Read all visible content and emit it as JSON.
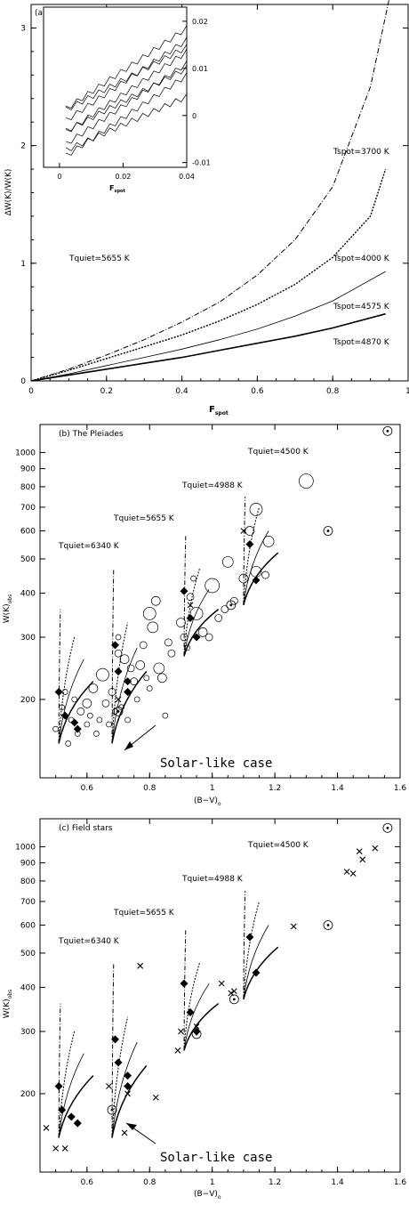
{
  "chart_data": [
    {
      "type": "line",
      "panel_label": "(a)",
      "xlabel": "F",
      "xlabel_sub": "spot",
      "ylabel": "ΔW(K)/W(K)",
      "xlim": [
        0,
        1
      ],
      "ylim": [
        0,
        3.2
      ],
      "xticks": [
        "0",
        "0.2",
        "0.4",
        "0.6",
        "0.8",
        "1"
      ],
      "yticks": [
        "0",
        "1",
        "2",
        "3"
      ],
      "annotations": [
        "Tquiet=5655 K"
      ],
      "series": [
        {
          "name": "Tspot=3700 K",
          "x": [
            0,
            0.1,
            0.2,
            0.3,
            0.4,
            0.5,
            0.6,
            0.7,
            0.8,
            0.9,
            0.95
          ],
          "y": [
            0,
            0.1,
            0.22,
            0.35,
            0.5,
            0.67,
            0.9,
            1.2,
            1.65,
            2.5,
            3.3
          ]
        },
        {
          "name": "Tspot=4000 K",
          "x": [
            0,
            0.1,
            0.2,
            0.3,
            0.4,
            0.5,
            0.6,
            0.7,
            0.8,
            0.9,
            0.94
          ],
          "y": [
            0,
            0.09,
            0.19,
            0.29,
            0.39,
            0.51,
            0.65,
            0.82,
            1.05,
            1.4,
            1.8
          ]
        },
        {
          "name": "Tspot=4575 K",
          "x": [
            0,
            0.1,
            0.2,
            0.3,
            0.4,
            0.5,
            0.6,
            0.7,
            0.8,
            0.94
          ],
          "y": [
            0,
            0.06,
            0.13,
            0.2,
            0.27,
            0.35,
            0.44,
            0.55,
            0.68,
            0.93
          ]
        },
        {
          "name": "Tspot=4870 K",
          "x": [
            0,
            0.1,
            0.2,
            0.3,
            0.4,
            0.5,
            0.6,
            0.7,
            0.8,
            0.94
          ],
          "y": [
            0,
            0.05,
            0.1,
            0.15,
            0.2,
            0.26,
            0.32,
            0.38,
            0.45,
            0.57
          ]
        }
      ],
      "inset": {
        "xlim": [
          -0.005,
          0.04
        ],
        "ylim": [
          -0.011,
          0.023
        ],
        "xticks": [
          "0",
          "0.02",
          "0.04"
        ],
        "yticks": [
          "-0.01",
          "0",
          "0.01",
          "0.02"
        ],
        "xlabel": "F",
        "xlabel_sub": "spot",
        "lines": [
          {
            "y0": 0.0005,
            "slope": 0.45
          },
          {
            "y0": -0.002,
            "slope": 0.45
          },
          {
            "y0": -0.0045,
            "slope": 0.45
          },
          {
            "y0": -0.007,
            "slope": 0.45
          },
          {
            "y0": -0.0095,
            "slope": 0.45
          },
          {
            "y0": 0.0005,
            "slope": 0.35
          },
          {
            "y0": -0.004,
            "slope": 0.35
          },
          {
            "y0": -0.008,
            "slope": 0.3
          }
        ]
      }
    },
    {
      "type": "scatter",
      "panel_label": "(b) The Pleiades",
      "xlabel": "(B−V)",
      "xlabel_sub": "o",
      "ylabel": "W(K)",
      "ylabel_sub": "obs",
      "xlim": [
        0.45,
        1.6
      ],
      "ylim": [
        120,
        1200
      ],
      "yscale": "log",
      "xticks": [
        "0.6",
        "0.8",
        "1",
        "1.2",
        "1.4",
        "1.6"
      ],
      "yticks": [
        "200",
        "300",
        "400",
        "500",
        "600",
        "700",
        "800",
        "900",
        "1000"
      ],
      "tracks": [
        {
          "label": "Tquiet=6340 K",
          "x0": 0.51,
          "y0": 150,
          "top": 360,
          "mid": [
            300,
            260,
            225
          ]
        },
        {
          "label": "Tquiet=5655 K",
          "x0": 0.68,
          "y0": 150,
          "top": 470,
          "mid": [
            330,
            280,
            240
          ]
        },
        {
          "label": "Tquiet=4988 K",
          "x0": 0.91,
          "y0": 265,
          "top": 580,
          "mid": [
            470,
            410,
            360
          ]
        },
        {
          "label": "Tquiet=4500 K",
          "x0": 1.1,
          "y0": 370,
          "top": 750,
          "mid": [
            700,
            600,
            520
          ]
        }
      ],
      "diamonds": [
        [
          0.51,
          210
        ],
        [
          0.53,
          180
        ],
        [
          0.56,
          172
        ],
        [
          0.57,
          165
        ],
        [
          0.69,
          285
        ],
        [
          0.7,
          240
        ],
        [
          0.73,
          225
        ],
        [
          0.73,
          210
        ],
        [
          0.91,
          405
        ],
        [
          0.93,
          340
        ],
        [
          0.95,
          300
        ],
        [
          1.12,
          550
        ],
        [
          1.14,
          435
        ]
      ],
      "circles": [
        [
          0.5,
          165,
          3
        ],
        [
          0.52,
          190,
          3
        ],
        [
          0.53,
          210,
          3
        ],
        [
          0.54,
          150,
          3
        ],
        [
          0.55,
          175,
          3
        ],
        [
          0.56,
          200,
          3
        ],
        [
          0.57,
          160,
          3
        ],
        [
          0.58,
          185,
          4
        ],
        [
          0.6,
          195,
          5
        ],
        [
          0.6,
          170,
          3
        ],
        [
          0.61,
          180,
          3
        ],
        [
          0.62,
          215,
          5
        ],
        [
          0.63,
          160,
          3
        ],
        [
          0.64,
          175,
          3
        ],
        [
          0.65,
          235,
          7
        ],
        [
          0.66,
          195,
          4
        ],
        [
          0.67,
          170,
          3
        ],
        [
          0.68,
          210,
          4
        ],
        [
          0.69,
          185,
          3
        ],
        [
          0.7,
          270,
          4
        ],
        [
          0.7,
          300,
          3
        ],
        [
          0.71,
          190,
          3
        ],
        [
          0.72,
          260,
          5
        ],
        [
          0.73,
          175,
          3
        ],
        [
          0.74,
          245,
          4
        ],
        [
          0.75,
          225,
          4
        ],
        [
          0.76,
          200,
          3
        ],
        [
          0.77,
          250,
          5
        ],
        [
          0.78,
          285,
          4
        ],
        [
          0.79,
          230,
          3
        ],
        [
          0.8,
          215,
          3
        ],
        [
          0.8,
          350,
          7
        ],
        [
          0.81,
          320,
          6
        ],
        [
          0.82,
          380,
          5
        ],
        [
          0.83,
          245,
          6
        ],
        [
          0.84,
          230,
          5
        ],
        [
          0.85,
          180,
          3
        ],
        [
          0.86,
          290,
          4
        ],
        [
          0.87,
          270,
          4
        ],
        [
          0.9,
          330,
          5
        ],
        [
          0.91,
          300,
          4
        ],
        [
          0.92,
          280,
          3
        ],
        [
          0.93,
          390,
          4
        ],
        [
          0.94,
          440,
          3
        ],
        [
          0.95,
          350,
          7
        ],
        [
          0.97,
          310,
          5
        ],
        [
          0.99,
          300,
          4
        ],
        [
          1.0,
          420,
          8
        ],
        [
          1.02,
          340,
          4
        ],
        [
          1.04,
          360,
          4
        ],
        [
          1.05,
          490,
          6
        ],
        [
          1.07,
          380,
          4
        ],
        [
          1.1,
          440,
          5
        ],
        [
          1.12,
          600,
          5
        ],
        [
          1.14,
          460,
          6
        ],
        [
          1.14,
          690,
          7
        ],
        [
          1.17,
          450,
          4
        ],
        [
          1.18,
          560,
          6
        ],
        [
          1.3,
          830,
          8
        ]
      ],
      "dotcircles": [
        [
          1.06,
          370
        ],
        [
          1.37,
          600
        ],
        [
          1.56,
          1150
        ],
        [
          0.7,
          185
        ]
      ],
      "crosses": [
        [
          0.93,
          370
        ],
        [
          1.1,
          600
        ],
        [
          0.7,
          200
        ]
      ],
      "annotations": [
        "Solar-like case"
      ]
    },
    {
      "type": "scatter",
      "panel_label": "(c) Field stars",
      "xlabel": "(B−V)",
      "xlabel_sub": "o",
      "ylabel": "W(K)",
      "ylabel_sub": "obs",
      "xlim": [
        0.45,
        1.6
      ],
      "ylim": [
        120,
        1200
      ],
      "yscale": "log",
      "xticks": [
        "0.6",
        "0.8",
        "1",
        "1.2",
        "1.4",
        "1.6"
      ],
      "yticks": [
        "200",
        "300",
        "400",
        "500",
        "600",
        "700",
        "800",
        "900",
        "1000"
      ],
      "tracks": [
        {
          "label": "Tquiet=6340 K",
          "x0": 0.51,
          "y0": 150,
          "top": 360,
          "mid": [
            300,
            260,
            225
          ]
        },
        {
          "label": "Tquiet=5655 K",
          "x0": 0.68,
          "y0": 150,
          "top": 470,
          "mid": [
            330,
            280,
            240
          ]
        },
        {
          "label": "Tquiet=4988 K",
          "x0": 0.91,
          "y0": 265,
          "top": 580,
          "mid": [
            470,
            410,
            360
          ]
        },
        {
          "label": "Tquiet=4500 K",
          "x0": 1.1,
          "y0": 370,
          "top": 750,
          "mid": [
            700,
            600,
            520
          ]
        }
      ],
      "diamonds": [
        [
          0.51,
          210
        ],
        [
          0.52,
          180
        ],
        [
          0.55,
          172
        ],
        [
          0.57,
          165
        ],
        [
          0.69,
          285
        ],
        [
          0.7,
          245
        ],
        [
          0.73,
          225
        ],
        [
          0.73,
          210
        ],
        [
          0.91,
          410
        ],
        [
          0.93,
          340
        ],
        [
          0.95,
          300
        ],
        [
          1.12,
          555
        ],
        [
          1.14,
          440
        ]
      ],
      "circles": [],
      "dotcircles": [
        [
          0.68,
          180
        ],
        [
          0.95,
          295
        ],
        [
          1.07,
          370
        ],
        [
          1.37,
          600
        ],
        [
          1.56,
          1130
        ]
      ],
      "crosses": [
        [
          0.47,
          160
        ],
        [
          0.5,
          140
        ],
        [
          0.53,
          140
        ],
        [
          0.67,
          210
        ],
        [
          0.72,
          155
        ],
        [
          0.73,
          200
        ],
        [
          0.77,
          460
        ],
        [
          0.82,
          195
        ],
        [
          0.89,
          265
        ],
        [
          0.9,
          300
        ],
        [
          0.95,
          310
        ],
        [
          1.03,
          410
        ],
        [
          1.06,
          385
        ],
        [
          1.07,
          390
        ],
        [
          1.26,
          595
        ],
        [
          1.43,
          850
        ],
        [
          1.45,
          840
        ],
        [
          1.47,
          970
        ],
        [
          1.48,
          920
        ],
        [
          1.52,
          990
        ]
      ],
      "annotations": [
        "Solar-like case"
      ]
    }
  ]
}
